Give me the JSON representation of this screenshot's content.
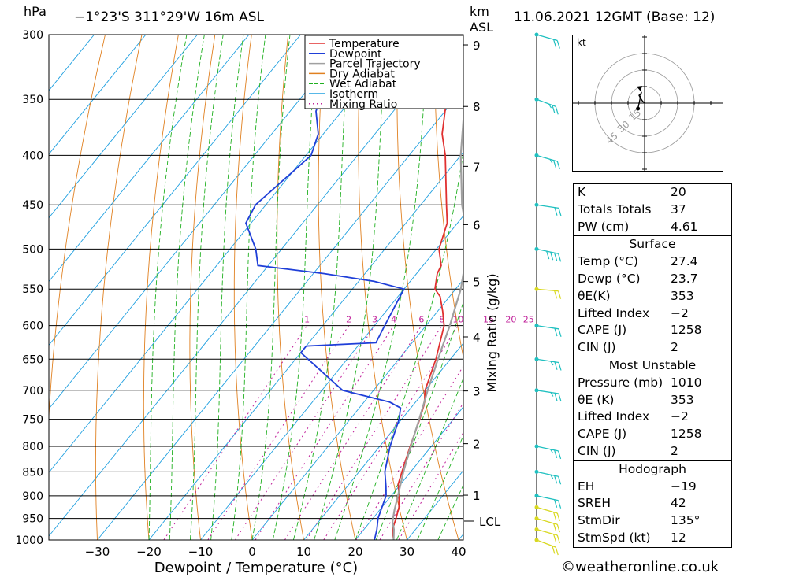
{
  "header": {
    "pressure_unit": "hPa",
    "location": "−1°23'S  311°29'W  16m  ASL",
    "height_unit_top": "km",
    "height_unit_bottom": "ASL",
    "datetime": "11.06.2021  12GMT  (Base: 12)"
  },
  "credit": "©weatheronline.co.uk",
  "colors": {
    "temperature": "#e03030",
    "dewpoint": "#1f3fd8",
    "parcel": "#a0a0a0",
    "dry_adiabat": "#e08020",
    "wet_adiabat": "#20b020",
    "isotherm": "#20a0e0",
    "mixing_ratio": "#c0209a",
    "wind_upper": "#20c0c0",
    "wind_low": "#d8d820"
  },
  "chart_data": {
    "type": "line",
    "xlabel": "Dewpoint / Temperature (°C)",
    "ylabel_right": "Mixing Ratio (g/kg)",
    "x_ticks": [
      -30,
      -20,
      -10,
      0,
      10,
      20,
      30,
      40
    ],
    "xlim": [
      -40,
      40
    ],
    "pressure_levels": [
      300,
      350,
      400,
      450,
      500,
      550,
      600,
      650,
      700,
      750,
      800,
      850,
      900,
      950,
      1000
    ],
    "ylim_hpa": [
      1000,
      300
    ],
    "height_ticks_km": [
      1,
      2,
      3,
      4,
      5,
      6,
      7,
      8,
      9
    ],
    "lcl_label": "LCL",
    "lcl_hpa": 957,
    "mixing_ratio_labels": [
      "1",
      "2",
      "3",
      "4",
      "6",
      "8",
      "10",
      "15",
      "20",
      "25"
    ],
    "mixing_ratio_values": [
      1,
      2,
      3,
      4,
      6,
      8,
      10,
      15,
      20,
      25
    ],
    "legend": [
      {
        "key": "temperature",
        "label": "Temperature"
      },
      {
        "key": "dewpoint",
        "label": "Dewpoint"
      },
      {
        "key": "parcel",
        "label": "Parcel Trajectory"
      },
      {
        "key": "dry_adiabat",
        "label": "Dry Adiabat"
      },
      {
        "key": "wet_adiabat",
        "label": "Wet Adiabat"
      },
      {
        "key": "isotherm",
        "label": "Isotherm"
      },
      {
        "key": "mixing_ratio",
        "label": "Mixing Ratio"
      }
    ],
    "series": [
      {
        "key": "temperature",
        "points": [
          [
            1000,
            27.4
          ],
          [
            975,
            25.5
          ],
          [
            950,
            24.5
          ],
          [
            925,
            23.3
          ],
          [
            900,
            21.5
          ],
          [
            875,
            19.5
          ],
          [
            850,
            18.3
          ],
          [
            800,
            15.9
          ],
          [
            750,
            13.5
          ],
          [
            725,
            12.1
          ],
          [
            715,
            11.3
          ],
          [
            700,
            10.0
          ],
          [
            650,
            7.2
          ],
          [
            600,
            3.5
          ],
          [
            580,
            1.0
          ],
          [
            560,
            -1.8
          ],
          [
            550,
            -4.0
          ],
          [
            530,
            -6.0
          ],
          [
            520,
            -6.5
          ],
          [
            500,
            -9.5
          ],
          [
            470,
            -12.0
          ],
          [
            450,
            -15.0
          ],
          [
            400,
            -23.0
          ],
          [
            380,
            -27.0
          ],
          [
            360,
            -30.0
          ],
          [
            340,
            -33.0
          ],
          [
            320,
            -38.0
          ],
          [
            300,
            -44.0
          ]
        ]
      },
      {
        "key": "dewpoint",
        "points": [
          [
            1000,
            23.7
          ],
          [
            975,
            22.5
          ],
          [
            950,
            21.0
          ],
          [
            925,
            20.0
          ],
          [
            900,
            19.0
          ],
          [
            880,
            17.5
          ],
          [
            850,
            15.0
          ],
          [
            800,
            12.0
          ],
          [
            750,
            9.5
          ],
          [
            730,
            8.0
          ],
          [
            720,
            5.0
          ],
          [
            700,
            -6.0
          ],
          [
            640,
            -20.0
          ],
          [
            630,
            -20.0
          ],
          [
            625,
            -7.0
          ],
          [
            600,
            -8.0
          ],
          [
            550,
            -10.0
          ],
          [
            540,
            -17.0
          ],
          [
            530,
            -28.0
          ],
          [
            520,
            -42.0
          ],
          [
            500,
            -45.0
          ],
          [
            470,
            -51.0
          ],
          [
            450,
            -52.0
          ],
          [
            400,
            -49.0
          ],
          [
            380,
            -51.0
          ],
          [
            360,
            -55.0
          ],
          [
            340,
            -57.0
          ],
          [
            320,
            -57.0
          ],
          [
            300,
            -58.0
          ]
        ]
      },
      {
        "key": "parcel",
        "points": [
          [
            1000,
            27.4
          ],
          [
            975,
            25.8
          ],
          [
            957,
            24.3
          ],
          [
            930,
            22.8
          ],
          [
            900,
            21.3
          ],
          [
            850,
            18.6
          ],
          [
            800,
            16.0
          ],
          [
            750,
            13.4
          ],
          [
            700,
            10.5
          ],
          [
            650,
            7.6
          ],
          [
            600,
            4.6
          ],
          [
            550,
            1.0
          ],
          [
            500,
            -4.0
          ],
          [
            470,
            -8.5
          ],
          [
            450,
            -12.0
          ],
          [
            400,
            -20.0
          ],
          [
            350,
            -28.0
          ],
          [
            335,
            -31.0
          ]
        ]
      }
    ]
  },
  "hodograph": {
    "unit": "kt",
    "ring_labels": [
      "15",
      "30",
      "45"
    ],
    "path": [
      [
        0,
        0
      ],
      [
        -2,
        2
      ],
      [
        -4,
        5
      ],
      [
        -5,
        7
      ],
      [
        -3,
        9
      ],
      [
        -6,
        -5
      ]
    ]
  },
  "winds": [
    {
      "hpa": 1000,
      "dir": 120,
      "speed": 10,
      "color": "wind_low"
    },
    {
      "hpa": 975,
      "dir": 110,
      "speed": 10,
      "color": "wind_low"
    },
    {
      "hpa": 950,
      "dir": 110,
      "speed": 10,
      "color": "wind_low"
    },
    {
      "hpa": 925,
      "dir": 110,
      "speed": 10,
      "color": "wind_low"
    },
    {
      "hpa": 900,
      "dir": 100,
      "speed": 10,
      "color": "wind_upper"
    },
    {
      "hpa": 850,
      "dir": 100,
      "speed": 15,
      "color": "wind_upper"
    },
    {
      "hpa": 800,
      "dir": 100,
      "speed": 15,
      "color": "wind_upper"
    },
    {
      "hpa": 700,
      "dir": 90,
      "speed": 15,
      "color": "wind_upper"
    },
    {
      "hpa": 650,
      "dir": 90,
      "speed": 15,
      "color": "wind_upper"
    },
    {
      "hpa": 600,
      "dir": 90,
      "speed": 10,
      "color": "wind_upper"
    },
    {
      "hpa": 550,
      "dir": 80,
      "speed": 10,
      "color": "wind_low"
    },
    {
      "hpa": 500,
      "dir": 100,
      "speed": 20,
      "color": "wind_upper"
    },
    {
      "hpa": 450,
      "dir": 90,
      "speed": 10,
      "color": "wind_upper"
    },
    {
      "hpa": 400,
      "dir": 110,
      "speed": 15,
      "color": "wind_upper"
    },
    {
      "hpa": 350,
      "dir": 120,
      "speed": 15,
      "color": "wind_upper"
    },
    {
      "hpa": 300,
      "dir": 110,
      "speed": 10,
      "color": "wind_upper"
    }
  ],
  "indices": {
    "general": [
      {
        "key": "K",
        "value": "20"
      },
      {
        "key": "Totals Totals",
        "value": "37"
      },
      {
        "key": "PW (cm)",
        "value": "4.61"
      }
    ],
    "surface_title": "Surface",
    "surface": [
      {
        "key": "Temp (°C)",
        "value": "27.4"
      },
      {
        "key": "Dewp (°C)",
        "value": "23.7"
      },
      {
        "key": "θE(K)",
        "value": "353"
      },
      {
        "key": "Lifted Index",
        "value": "−2"
      },
      {
        "key": "CAPE (J)",
        "value": "1258"
      },
      {
        "key": "CIN (J)",
        "value": "2"
      }
    ],
    "mu_title": "Most Unstable",
    "most_unstable": [
      {
        "key": "Pressure (mb)",
        "value": "1010"
      },
      {
        "key": "θE (K)",
        "value": "353"
      },
      {
        "key": "Lifted Index",
        "value": "−2"
      },
      {
        "key": "CAPE (J)",
        "value": "1258"
      },
      {
        "key": "CIN (J)",
        "value": "2"
      }
    ],
    "hodo_title": "Hodograph",
    "hodograph": [
      {
        "key": "EH",
        "value": "−19"
      },
      {
        "key": "SREH",
        "value": "42"
      },
      {
        "key": "StmDir",
        "value": "135°"
      },
      {
        "key": "StmSpd (kt)",
        "value": "12"
      }
    ]
  }
}
